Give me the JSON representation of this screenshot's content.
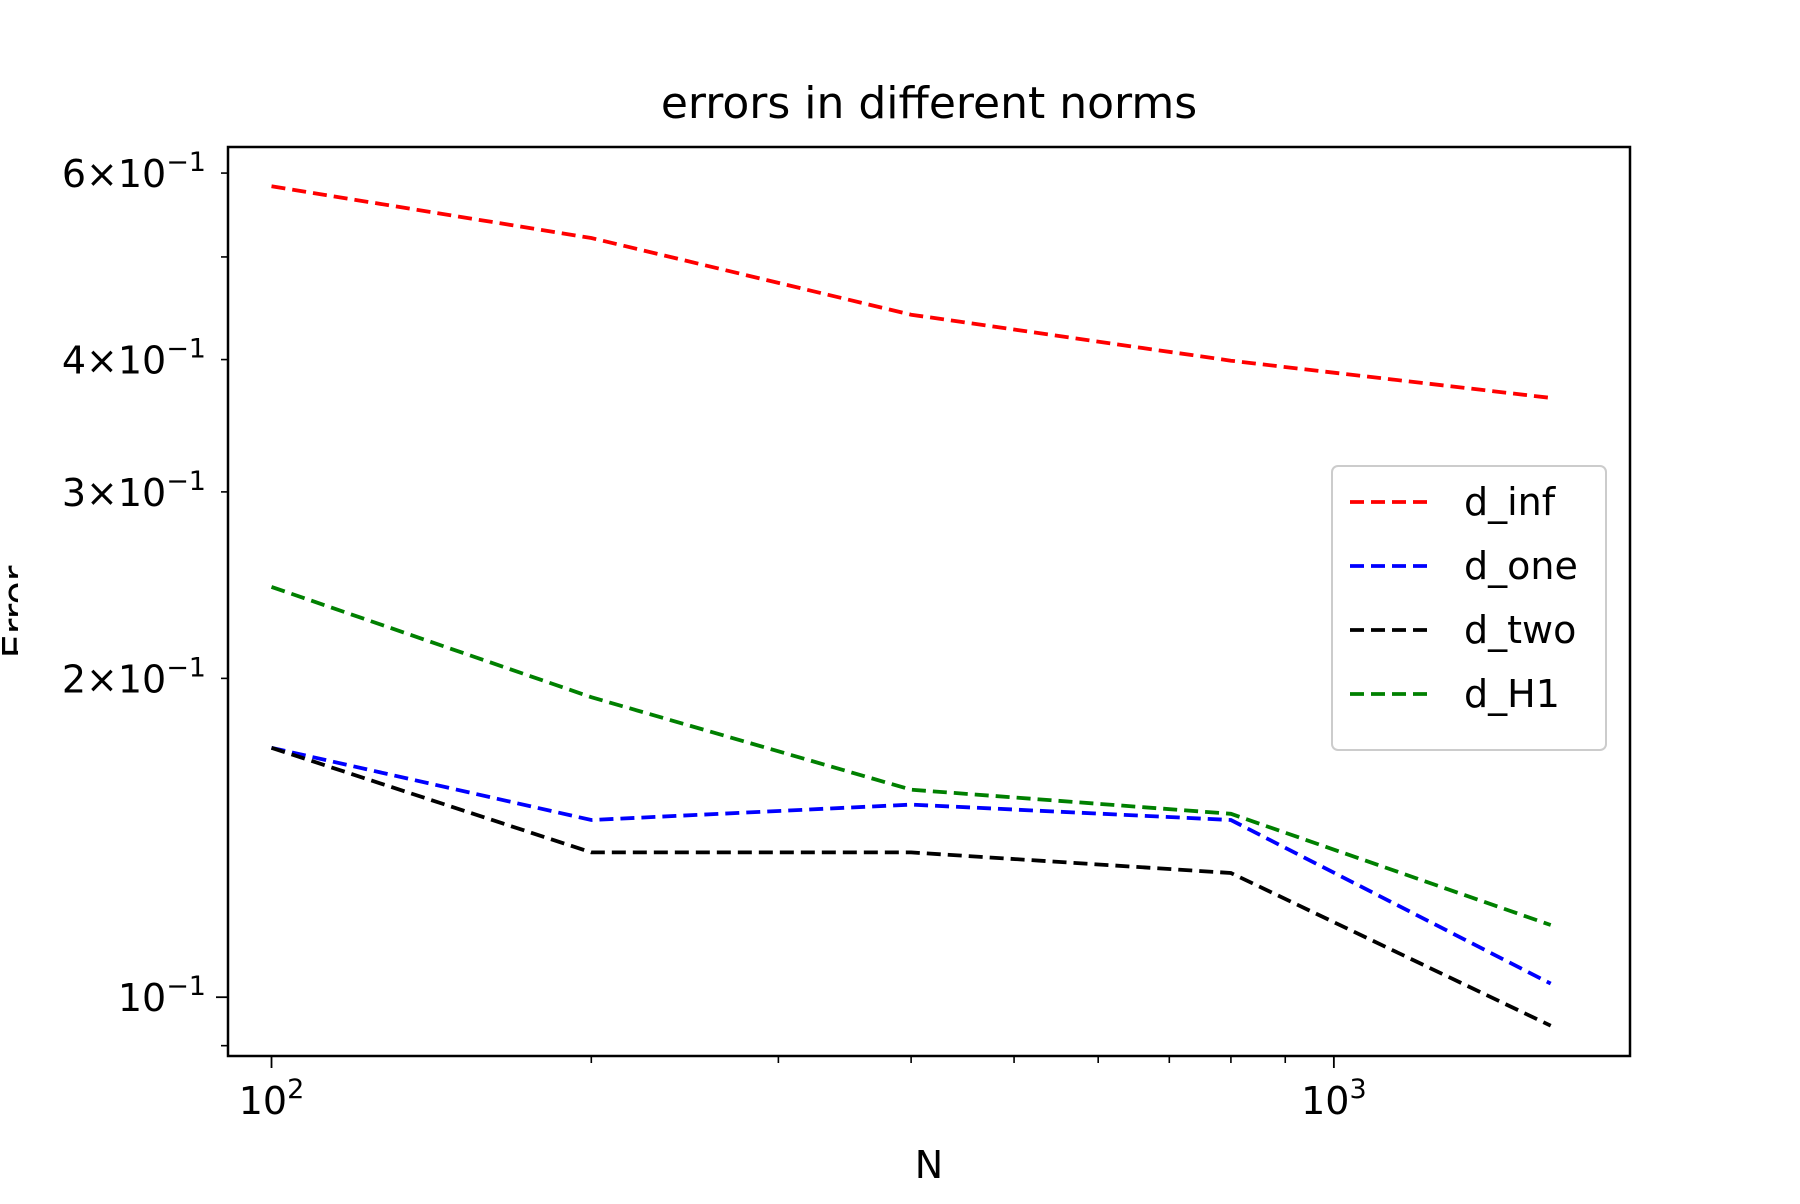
{
  "chart_data": {
    "type": "line",
    "title": "errors in different norms",
    "xlabel": "N",
    "ylabel": "Error",
    "xscale": "log",
    "yscale": "log",
    "xlim": [
      91,
      1900
    ],
    "ylim": [
      0.088,
      0.635
    ],
    "x": [
      100,
      200,
      400,
      800,
      1600
    ],
    "x_ticks": [
      {
        "value": 100,
        "label": "10^2",
        "base": "10",
        "exp": "2"
      },
      {
        "value": 1000,
        "label": "10^3",
        "base": "10",
        "exp": "3"
      }
    ],
    "y_ticks": [
      {
        "value": 0.6,
        "label": "6×10^-1",
        "mant": "6",
        "base": "10",
        "exp": "−1"
      },
      {
        "value": 0.4,
        "label": "4×10^-1",
        "mant": "4",
        "base": "10",
        "exp": "−1"
      },
      {
        "value": 0.3,
        "label": "3×10^-1",
        "mant": "3",
        "base": "10",
        "exp": "−1"
      },
      {
        "value": 0.2,
        "label": "2×10^-1",
        "mant": "2",
        "base": "10",
        "exp": "−1"
      },
      {
        "value": 0.1,
        "label": "10^-1",
        "mant": "",
        "base": "10",
        "exp": "−1"
      }
    ],
    "grid": false,
    "legend_position": "center-right",
    "series": [
      {
        "name": "d_inf",
        "color": "#ff0000",
        "linestyle": "dashed",
        "values": [
          0.583,
          0.521,
          0.441,
          0.399,
          0.368
        ]
      },
      {
        "name": "d_one",
        "color": "#0000ff",
        "linestyle": "dashed",
        "values": [
          0.172,
          0.147,
          0.152,
          0.147,
          0.103
        ]
      },
      {
        "name": "d_two",
        "color": "#000000",
        "linestyle": "dashed",
        "values": [
          0.172,
          0.137,
          0.137,
          0.131,
          0.094
        ]
      },
      {
        "name": "d_H1",
        "color": "#008000",
        "linestyle": "dashed",
        "values": [
          0.244,
          0.192,
          0.157,
          0.149,
          0.117
        ]
      }
    ]
  }
}
